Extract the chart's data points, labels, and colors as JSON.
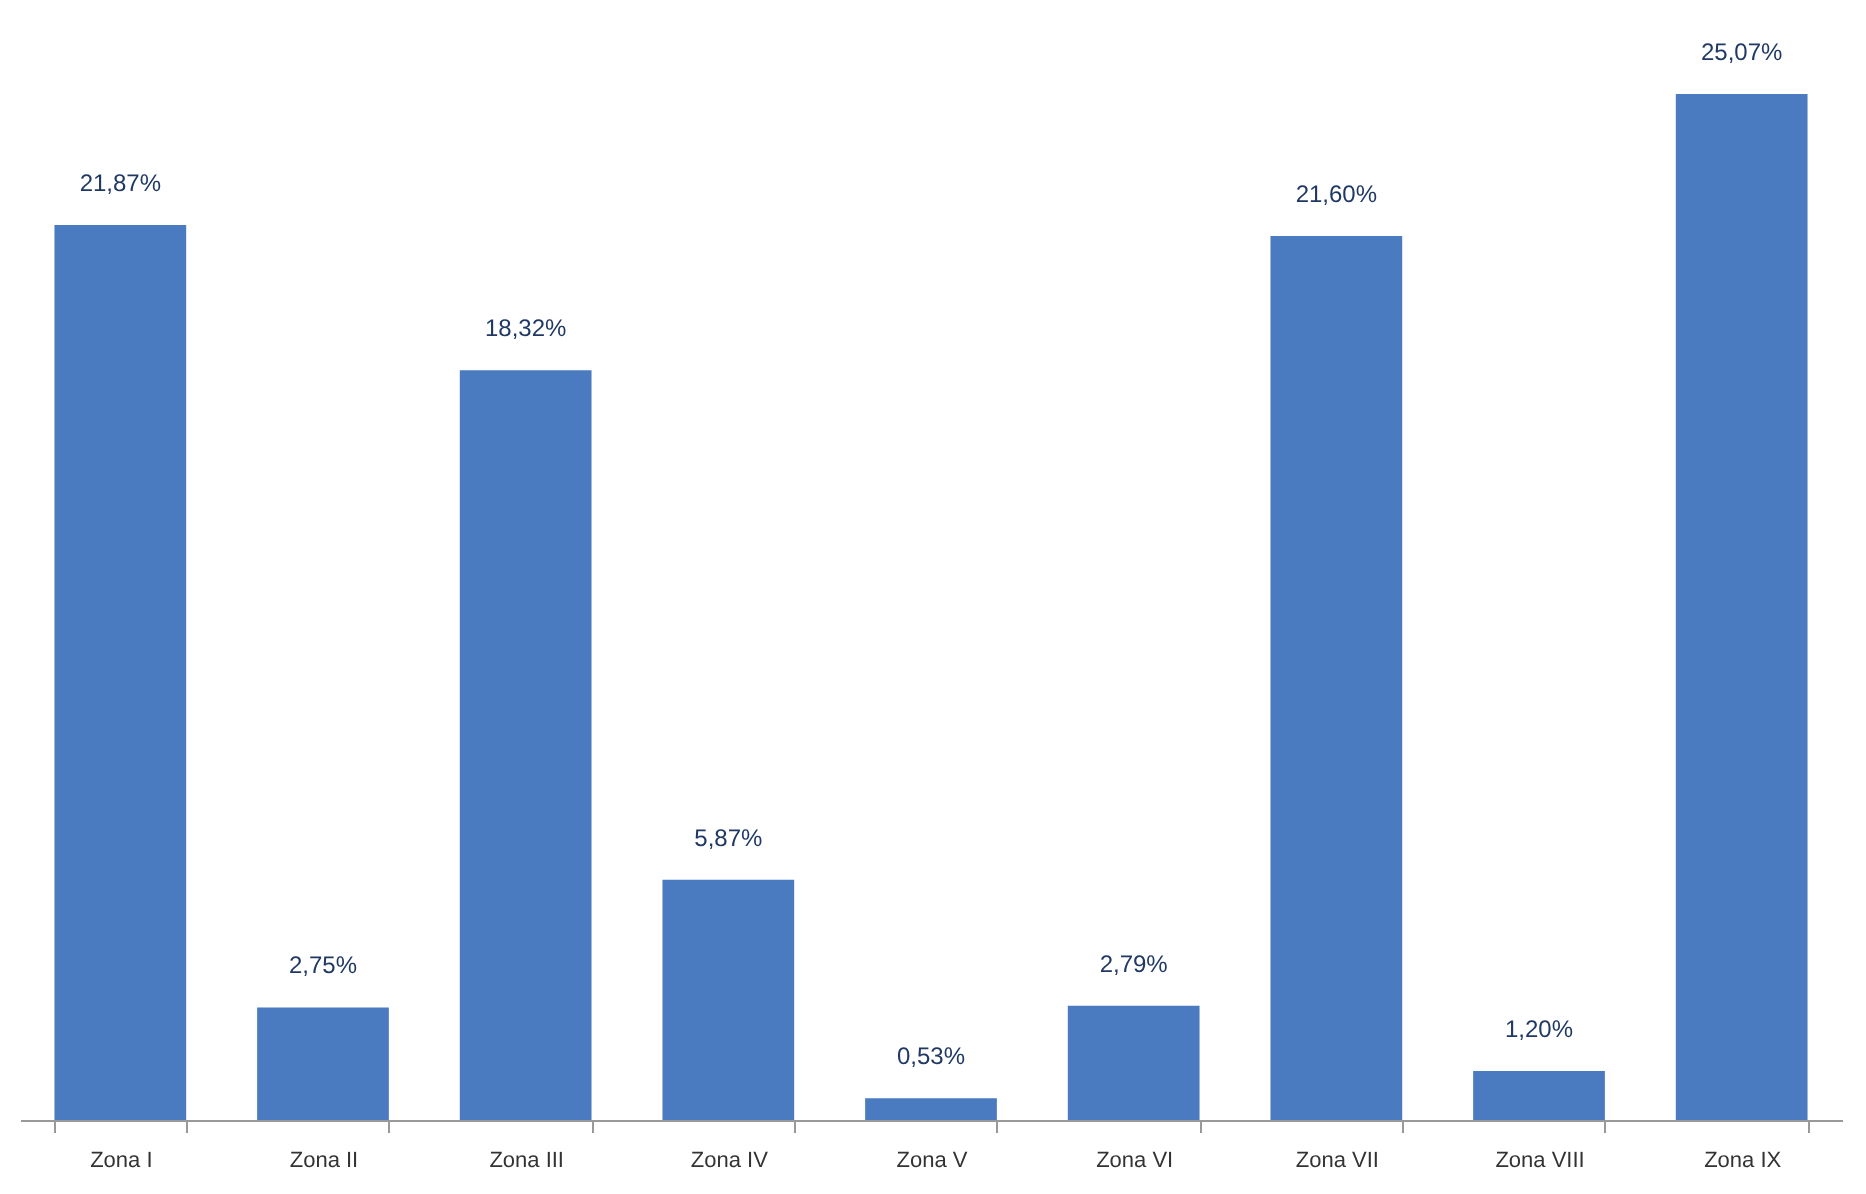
{
  "chart_data": {
    "type": "bar",
    "categories": [
      "Zona I",
      "Zona II",
      "Zona III",
      "Zona IV",
      "Zona V",
      "Zona VI",
      "Zona VII",
      "Zona VIII",
      "Zona IX"
    ],
    "values": [
      21.87,
      2.75,
      18.32,
      5.87,
      0.53,
      2.79,
      21.6,
      1.2,
      25.07
    ],
    "value_labels": [
      "21,87%",
      "2,75%",
      "18,32%",
      "5,87%",
      "0,53%",
      "2,79%",
      "21,60%",
      "1,20%",
      "25,07%"
    ],
    "color": "#4a7bc0",
    "tick_labels": "x"
  }
}
